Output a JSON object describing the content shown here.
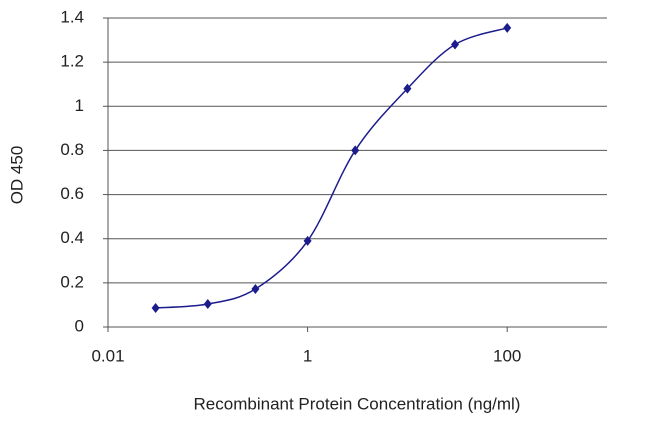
{
  "chart_data": {
    "type": "line",
    "x_label": "Recombinant Protein Concentration (ng/ml)",
    "y_label": "OD 450",
    "x": [
      0.03,
      0.1,
      0.3,
      1,
      3,
      10,
      30,
      100
    ],
    "series": [
      {
        "name": "OD 450",
        "color": "#1c1c8c",
        "values": [
          0.086,
          0.104,
          0.172,
          0.39,
          0.8,
          1.08,
          1.28,
          1.355
        ]
      }
    ],
    "xscale": "log",
    "xlim": [
      0.01,
      1000
    ],
    "xticks": [
      0.01,
      1,
      100
    ],
    "ylim": [
      0,
      1.4
    ],
    "yticks": [
      0,
      0.2,
      0.4,
      0.6,
      0.8,
      1,
      1.2,
      1.4
    ],
    "grid": true
  }
}
